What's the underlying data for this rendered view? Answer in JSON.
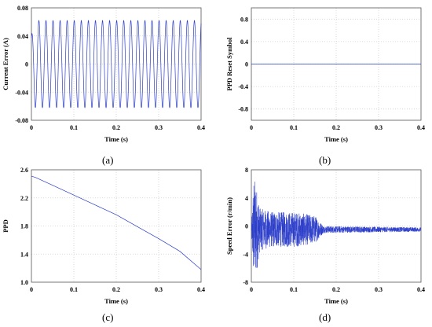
{
  "panels": [
    {
      "caption": "(a)",
      "chart_data": {
        "type": "line",
        "xlabel": "Time  (s)",
        "ylabel": "Current Error  (A)",
        "xlim": [
          0,
          0.4
        ],
        "ylim": [
          -0.08,
          0.08
        ],
        "xticks": [
          "0",
          "0.1",
          "0.2",
          "0.3",
          "0.4"
        ],
        "yticks": [
          "0.08",
          "0.04",
          "0",
          "-0.04",
          "-0.08"
        ],
        "series": [
          {
            "description_only": true,
            "frequency_hz": 60,
            "amplitude": 0.062,
            "values_note": "sinusoid"
          }
        ]
      }
    },
    {
      "caption": "(b)",
      "chart_data": {
        "type": "line",
        "xlabel": "Time  (s)",
        "ylabel": "PPD Reset Symbol",
        "xlim": [
          0,
          0.4
        ],
        "ylim": [
          -1,
          1
        ],
        "xticks": [
          "0",
          "0.1",
          "0.2",
          "0.3",
          "0.4"
        ],
        "yticks": [
          "0.8",
          "0.4",
          "0",
          "-0.4",
          "-0.8"
        ],
        "series": [
          {
            "x": [
              0,
              0.4
            ],
            "y": [
              0,
              0
            ]
          }
        ]
      }
    },
    {
      "caption": "(c)",
      "chart_data": {
        "type": "line",
        "xlabel": "Time  (s)",
        "ylabel": "PPD",
        "xlim": [
          0,
          0.4
        ],
        "ylim": [
          1.0,
          2.6
        ],
        "xticks": [
          "0",
          "0.1",
          "0.2",
          "0.3",
          "0.4"
        ],
        "yticks": [
          "2.6",
          "2.2",
          "1.8",
          "1.4",
          "1.0"
        ],
        "series": [
          {
            "x": [
              0,
              0.01,
              0.05,
              0.1,
              0.15,
              0.2,
              0.25,
              0.3,
              0.35,
              0.4
            ],
            "y": [
              2.51,
              2.49,
              2.38,
              2.24,
              2.1,
              1.96,
              1.79,
              1.62,
              1.44,
              1.18
            ]
          }
        ]
      }
    },
    {
      "caption": "(d)",
      "chart_data": {
        "type": "line",
        "xlabel": "Time  (s)",
        "ylabel": "Speed Error  (r/min)",
        "xlim": [
          0,
          0.4
        ],
        "ylim": [
          -8,
          8
        ],
        "xticks": [
          "0",
          "0.1",
          "0.2",
          "0.3",
          "0.4"
        ],
        "yticks": [
          "8",
          "4",
          "0",
          "-4",
          "-8"
        ],
        "series": [
          {
            "envelope": [
              [
                0,
                0
              ],
              [
                0.005,
                7.5
              ],
              [
                0.01,
                7
              ],
              [
                0.02,
                3
              ],
              [
                0.05,
                2.5
              ],
              [
                0.1,
                2.5
              ],
              [
                0.15,
                2
              ],
              [
                0.17,
                0.5
              ],
              [
                0.4,
                0.3
              ]
            ],
            "center": -0.5
          }
        ]
      }
    }
  ]
}
